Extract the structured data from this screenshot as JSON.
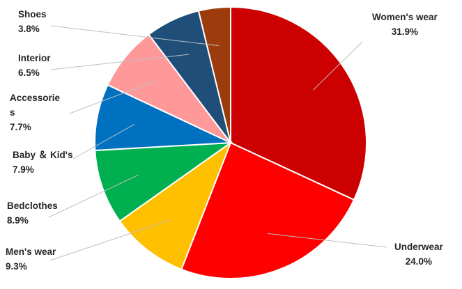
{
  "chart_data": {
    "type": "pie",
    "categories": [
      "Women's wear",
      "Underwear",
      "Men's wear",
      "Bedclothes",
      "Baby ＆ Kid's",
      "Accessories",
      "Interior",
      "Shoes"
    ],
    "values": [
      31.9,
      24.0,
      9.3,
      8.9,
      7.9,
      7.7,
      6.5,
      3.8
    ],
    "colors": [
      "#cc0000",
      "#ff0000",
      "#ffc000",
      "#00b050",
      "#0070c0",
      "#ff9999",
      "#1f4e79",
      "#9c3c0c"
    ],
    "value_format": "percent",
    "labels": [
      {
        "name_lines": [
          "Women's wear"
        ],
        "value": "31.9%"
      },
      {
        "name_lines": [
          "Underwear"
        ],
        "value": "24.0%"
      },
      {
        "name_lines": [
          "Men's wear"
        ],
        "value": "9.3%"
      },
      {
        "name_lines": [
          "Bedclothes"
        ],
        "value": "8.9%"
      },
      {
        "name_lines": [
          "Baby ＆ Kid's"
        ],
        "value": "7.9%"
      },
      {
        "name_lines": [
          "Accessorie",
          "s"
        ],
        "value": "7.7%"
      },
      {
        "name_lines": [
          "Interior"
        ],
        "value": "6.5%"
      },
      {
        "name_lines": [
          "Shoes"
        ],
        "value": "3.8%"
      }
    ],
    "title": "",
    "legend": "none",
    "start_angle_deg": 0,
    "direction": "clockwise"
  }
}
